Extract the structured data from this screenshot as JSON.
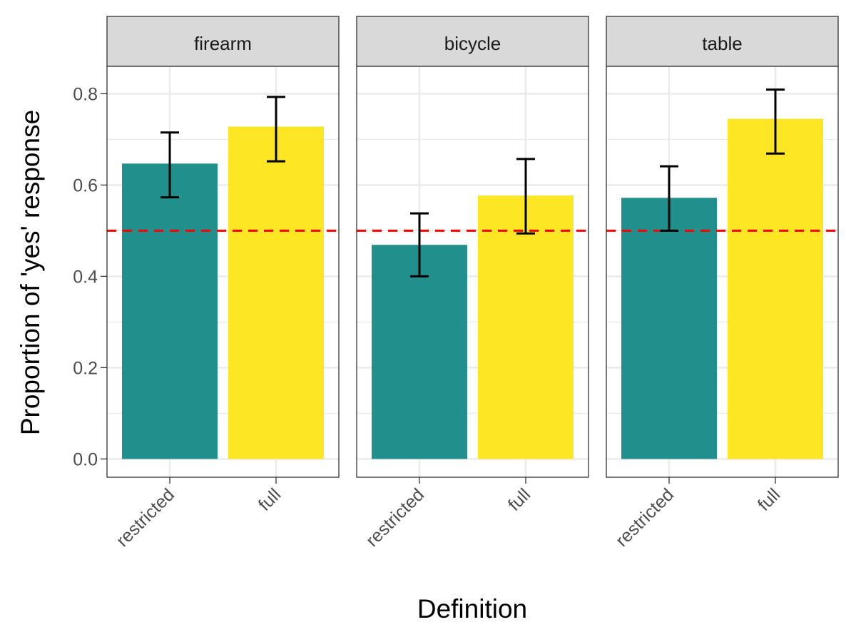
{
  "chart_data": {
    "type": "bar",
    "facets": [
      {
        "label": "firearm",
        "categories": [
          "restricted",
          "full"
        ],
        "values": [
          0.647,
          0.728
        ],
        "error_low": [
          0.573,
          0.652
        ],
        "error_high": [
          0.715,
          0.793
        ]
      },
      {
        "label": "bicycle",
        "categories": [
          "restricted",
          "full"
        ],
        "values": [
          0.469,
          0.577
        ],
        "error_low": [
          0.4,
          0.494
        ],
        "error_high": [
          0.538,
          0.657
        ]
      },
      {
        "label": "table",
        "categories": [
          "restricted",
          "full"
        ],
        "values": [
          0.572,
          0.745
        ],
        "error_low": [
          0.5,
          0.669
        ],
        "error_high": [
          0.641,
          0.809
        ]
      }
    ],
    "xlabel": "Definition",
    "ylabel": "Proportion of 'yes' response",
    "yticks": [
      "0.0",
      "0.2",
      "0.4",
      "0.6",
      "0.8"
    ],
    "ytick_values": [
      0,
      0.2,
      0.4,
      0.6,
      0.8
    ],
    "ylim": [
      -0.04,
      0.86
    ],
    "reference_line": 0.5,
    "colors": {
      "restricted": "#21908C",
      "full": "#FDE725",
      "reference_line": "#FF0000",
      "error_bar": "#000000",
      "strip_fill": "#D9D9D9",
      "grid": "#EBEBEB"
    },
    "grid": true,
    "legend": "none"
  }
}
